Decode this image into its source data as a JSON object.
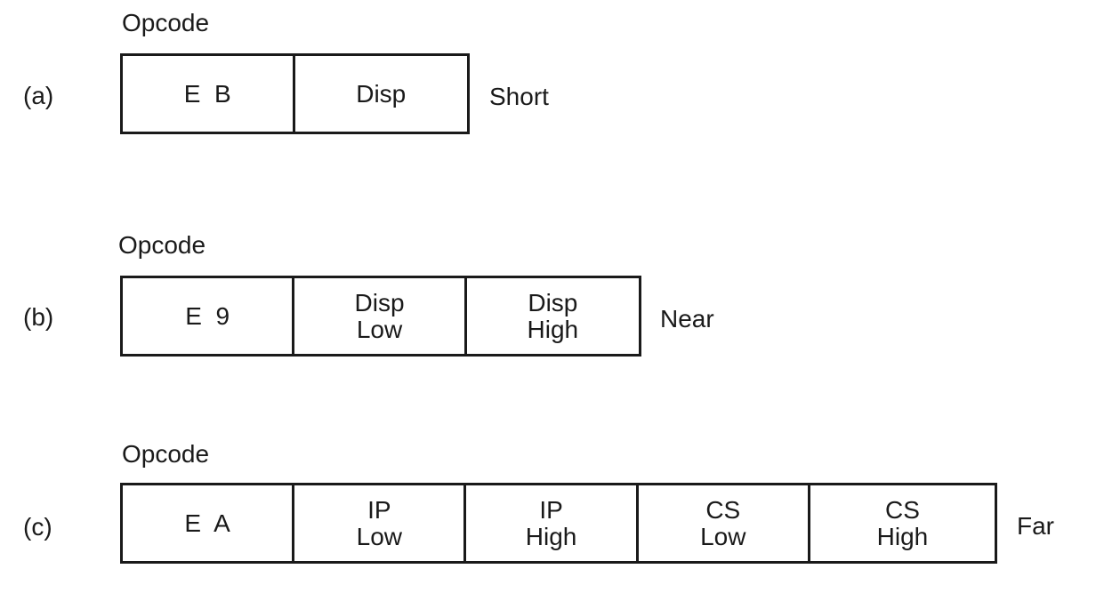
{
  "rows": [
    {
      "label": "(a)",
      "opcode_label": "Opcode",
      "type": "Short",
      "cells": [
        {
          "line1": "E  B",
          "line2": ""
        },
        {
          "line1": "Disp",
          "line2": ""
        }
      ]
    },
    {
      "label": "(b)",
      "opcode_label": "Opcode",
      "type": "Near",
      "cells": [
        {
          "line1": "E  9",
          "line2": ""
        },
        {
          "line1": "Disp",
          "line2": "Low"
        },
        {
          "line1": "Disp",
          "line2": "High"
        }
      ]
    },
    {
      "label": "(c)",
      "opcode_label": "Opcode",
      "type": "Far",
      "cells": [
        {
          "line1": "E  A",
          "line2": ""
        },
        {
          "line1": "IP",
          "line2": "Low"
        },
        {
          "line1": "IP",
          "line2": "High"
        },
        {
          "line1": "CS",
          "line2": "Low"
        },
        {
          "line1": "CS",
          "line2": "High"
        }
      ]
    }
  ]
}
